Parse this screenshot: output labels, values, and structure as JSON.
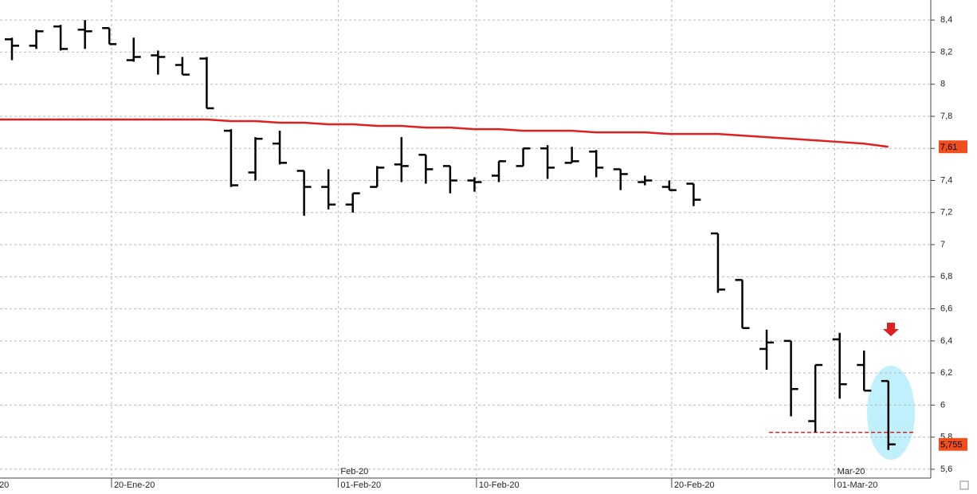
{
  "chart_data": {
    "type": "ohlc",
    "open": [
      8.28,
      8.24,
      8.36,
      8.34,
      8.35,
      8.15,
      8.18,
      8.12,
      8.16,
      7.71,
      7.45,
      7.63,
      7.46,
      7.36,
      7.25,
      7.36,
      7.5,
      7.56,
      7.49,
      7.4,
      7.43,
      7.49,
      7.6,
      7.51,
      7.58,
      7.47,
      7.39,
      7.36,
      7.38,
      7.07,
      6.78,
      6.35,
      6.4,
      5.9,
      6.41,
      6.25,
      6.15
    ],
    "high": [
      8.29,
      8.34,
      8.37,
      8.4,
      8.35,
      8.29,
      8.21,
      8.17,
      8.17,
      7.72,
      7.67,
      7.71,
      7.46,
      7.47,
      7.32,
      7.49,
      7.67,
      7.56,
      7.49,
      7.42,
      7.52,
      7.6,
      7.62,
      7.61,
      7.59,
      7.47,
      7.43,
      7.4,
      7.38,
      7.07,
      6.78,
      6.47,
      6.4,
      6.25,
      6.45,
      6.34,
      6.15
    ],
    "low": [
      8.15,
      8.22,
      8.21,
      8.22,
      8.25,
      8.14,
      8.06,
      8.06,
      7.85,
      7.36,
      7.4,
      7.5,
      7.18,
      7.22,
      7.2,
      7.36,
      7.39,
      7.38,
      7.32,
      7.33,
      7.39,
      7.49,
      7.41,
      7.51,
      7.42,
      7.34,
      7.37,
      7.34,
      7.24,
      6.7,
      6.48,
      6.22,
      5.93,
      5.83,
      6.04,
      6.09,
      5.72
    ],
    "close": [
      8.24,
      8.33,
      8.22,
      8.33,
      8.25,
      8.17,
      8.17,
      8.06,
      7.85,
      7.37,
      7.66,
      7.51,
      7.36,
      7.25,
      7.32,
      7.48,
      7.49,
      7.47,
      7.4,
      7.39,
      7.52,
      7.6,
      7.48,
      7.52,
      7.48,
      7.44,
      7.4,
      7.34,
      7.28,
      6.72,
      6.48,
      6.39,
      6.1,
      6.25,
      6.13,
      6.09,
      5.755
    ],
    "moving_average": {
      "color": "#e02020",
      "values": [
        7.78,
        7.78,
        7.78,
        7.78,
        7.78,
        7.78,
        7.78,
        7.78,
        7.78,
        7.77,
        7.77,
        7.76,
        7.76,
        7.75,
        7.75,
        7.74,
        7.74,
        7.73,
        7.73,
        7.72,
        7.72,
        7.71,
        7.71,
        7.71,
        7.7,
        7.7,
        7.7,
        7.69,
        7.69,
        7.69,
        7.68,
        7.67,
        7.66,
        7.65,
        7.64,
        7.63,
        7.61
      ]
    },
    "support_level": 5.83,
    "badges": [
      {
        "value": 7.61,
        "label": "7,61"
      },
      {
        "value": 5.755,
        "label": "5,755"
      }
    ],
    "ylim": [
      5.545,
      8.525
    ],
    "yticks": [
      {
        "value": 5.6,
        "label": "5,6"
      },
      {
        "value": 5.8,
        "label": "5,8"
      },
      6,
      {
        "value": 6.2,
        "label": "6,2"
      },
      {
        "value": 6.4,
        "label": "6,4"
      },
      {
        "value": 6.6,
        "label": "6,6"
      },
      {
        "value": 6.8,
        "label": "6,8"
      },
      7,
      {
        "value": 7.2,
        "label": "7,2"
      },
      {
        "value": 7.4,
        "label": "7,4"
      },
      {
        "value": 7.6,
        "label": "7,6"
      },
      {
        "value": 7.8,
        "label": "7,8"
      },
      8,
      {
        "value": 8.2,
        "label": "8,2"
      },
      {
        "value": 8.4,
        "label": "8,4"
      }
    ],
    "xticks": [
      {
        "value": -0.62,
        "label": "20"
      },
      {
        "value": 4.09,
        "label": "20-Ene-20"
      },
      {
        "value": 13.4,
        "label": "01-Feb-20"
      },
      {
        "value": 19.08,
        "label": "10-Feb-20"
      },
      {
        "value": 27.1,
        "label": "20-Feb-20"
      },
      {
        "value": 33.8,
        "label": "01-Mar-20"
      }
    ],
    "xticks_top": [
      {
        "value": 13.4,
        "label": "Feb-20"
      },
      {
        "value": 33.8,
        "label": "Mar-20"
      }
    ],
    "grid": true
  }
}
